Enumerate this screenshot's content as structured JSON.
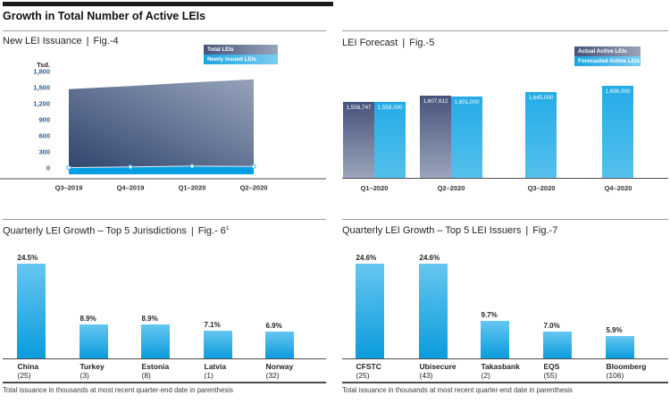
{
  "header": {
    "title": "Growth in Total Number of Active LEIs"
  },
  "separator": "|",
  "colors": {
    "header_bar": "#1a1a1a",
    "text": "#231f20",
    "rule": "#9a9a9a",
    "axis": "#4d4d4d",
    "tick_label": "#335e91",
    "accent_blue": "#009fe3",
    "navy_dark": "#31466e",
    "navy_light": "#97a3bc",
    "bar_dark_top": "#46537a",
    "bar_dark_bottom": "#9aa5bb",
    "fig5_blue_top": "#24abe6",
    "fig5_blue_bottom": "#54c0ec",
    "bar_blue_top": "#66c6f0",
    "bar_blue_bottom": "#0a9cdd"
  },
  "chart_data": [
    {
      "id": "fig4",
      "type": "area",
      "title": "New LEI Issuance",
      "fig_label": "Fig.-4",
      "unit": "Tsd.",
      "categories": [
        "Q3–2019",
        "Q4–2019",
        "Q1–2020",
        "Q2–2020"
      ],
      "series": [
        {
          "name": "Total LEIs",
          "values": [
            1470,
            1530,
            1595,
            1655
          ]
        },
        {
          "name": "Newly Issued LEIs",
          "values": [
            33,
            45,
            60,
            55
          ]
        }
      ],
      "ylim": [
        0,
        1800
      ],
      "yticks": [
        0,
        300,
        600,
        900,
        1200,
        1500,
        1800
      ],
      "ytick_labels": [
        "0",
        "300",
        "600",
        "900",
        "1,200",
        "1,500",
        "1,800"
      ],
      "legend_position": "top-right",
      "grid": false
    },
    {
      "id": "fig5",
      "type": "bar",
      "title": "LEI Forecast",
      "fig_label": "Fig.-5",
      "categories": [
        "Q1–2020",
        "Q2–2020",
        "Q3–2020",
        "Q4–2020"
      ],
      "series": [
        {
          "name": "Actual Active LEIs",
          "values": [
            1558747,
            1607612,
            null,
            null
          ],
          "labels": [
            "1,558,747",
            "1,607,612",
            null,
            null
          ]
        },
        {
          "name": "Forecasted Active LEIs",
          "values": [
            1559000,
            1601000,
            1645000,
            1696000
          ],
          "labels": [
            "1,559,000",
            "1,601,000",
            "1,645,000",
            "1,696,000"
          ]
        }
      ],
      "ylim": [
        900000,
        1750000
      ],
      "legend_position": "top-right",
      "grid": false
    },
    {
      "id": "fig6",
      "type": "bar",
      "title": "Quarterly LEI Growth – Top 5 Jurisdictions",
      "fig_label": "Fig.- 6",
      "fig_superscript": "1",
      "categories": [
        "China",
        "Turkey",
        "Estonia",
        "Latvia",
        "Norway"
      ],
      "issuance_labels": [
        "(25)",
        "(3)",
        "(8)",
        "(1)",
        "(32)"
      ],
      "values": [
        24.5,
        8.9,
        8.9,
        7.1,
        6.9
      ],
      "value_labels": [
        "24.5%",
        "8.9%",
        "8.9%",
        "7.1%",
        "6.9%"
      ],
      "ylim": [
        0,
        26
      ],
      "grid": false,
      "footnote": "Total issuance in thousands at most recent quarter-end date in parenthesis"
    },
    {
      "id": "fig7",
      "type": "bar",
      "title": "Quarterly LEI Growth – Top 5 LEI Issuers",
      "fig_label": "Fig.-7",
      "categories": [
        "CFSTC",
        "Ubisecure",
        "Takasbank",
        "EQS",
        "Bloomberg"
      ],
      "issuance_labels": [
        "(25)",
        "(43)",
        "(2)",
        "(55)",
        "(106)"
      ],
      "values": [
        24.6,
        24.6,
        9.7,
        7.0,
        5.9
      ],
      "value_labels": [
        "24.6%",
        "24.6%",
        "9.7%",
        "7.0%",
        "5.9%"
      ],
      "ylim": [
        0,
        26
      ],
      "grid": false,
      "footnote": "Total issuance in thousands at most recent quarter-end date in parenthesis"
    }
  ]
}
